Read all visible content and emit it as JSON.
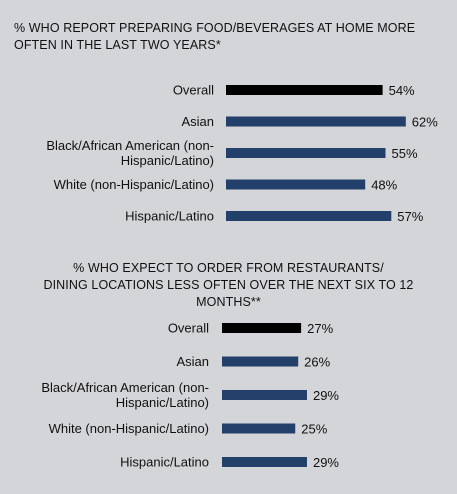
{
  "colors": {
    "background": "#d4d5d8",
    "overall_bar": "#000000",
    "group_bar": "#22406a"
  },
  "chart_data": [
    {
      "type": "bar",
      "orientation": "horizontal",
      "title": "% WHO REPORT PREPARING FOOD/BEVERAGES AT HOME MORE\nOFTEN IN THE LAST TWO YEARS*",
      "categories": [
        "Overall",
        "Asian",
        "Black/African American (non-\nHispanic/Latino)",
        "White (non-Hispanic/Latino)",
        "Hispanic/Latino"
      ],
      "values": [
        54,
        62,
        55,
        48,
        57
      ],
      "value_labels": [
        "54%",
        "62%",
        "55%",
        "48%",
        "57%"
      ],
      "xlim": [
        0,
        100
      ]
    },
    {
      "type": "bar",
      "orientation": "horizontal",
      "title": "% WHO EXPECT TO ORDER FROM RESTAURANTS/\nDINING LOCATIONS LESS OFTEN OVER THE NEXT SIX TO 12\nMONTHS**",
      "categories": [
        "Overall",
        "Asian",
        "Black/African American (non-\nHispanic/Latino)",
        "White (non-Hispanic/Latino)",
        "Hispanic/Latino"
      ],
      "values": [
        27,
        26,
        29,
        25,
        29
      ],
      "value_labels": [
        "27%",
        "26%",
        "29%",
        "25%",
        "29%"
      ],
      "xlim": [
        0,
        100
      ]
    }
  ]
}
